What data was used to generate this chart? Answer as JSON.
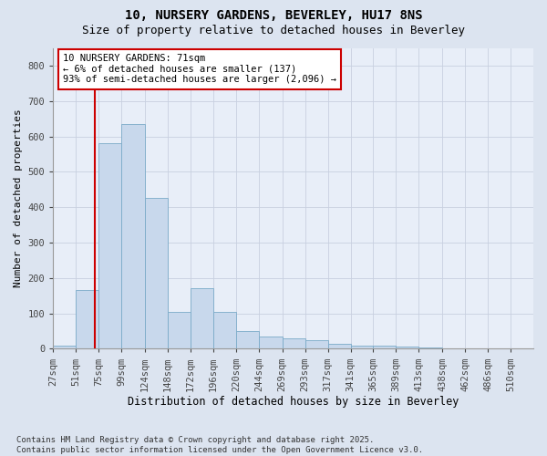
{
  "title": "10, NURSERY GARDENS, BEVERLEY, HU17 8NS",
  "subtitle": "Size of property relative to detached houses in Beverley",
  "xlabel": "Distribution of detached houses by size in Beverley",
  "ylabel": "Number of detached properties",
  "footnote": "Contains HM Land Registry data © Crown copyright and database right 2025.\nContains public sector information licensed under the Open Government Licence v3.0.",
  "bin_labels": [
    "27sqm",
    "51sqm",
    "75sqm",
    "99sqm",
    "124sqm",
    "148sqm",
    "172sqm",
    "196sqm",
    "220sqm",
    "244sqm",
    "269sqm",
    "293sqm",
    "317sqm",
    "341sqm",
    "365sqm",
    "389sqm",
    "413sqm",
    "438sqm",
    "462sqm",
    "486sqm",
    "510sqm"
  ],
  "bin_edges": [
    27,
    51,
    75,
    99,
    124,
    148,
    172,
    196,
    220,
    244,
    269,
    293,
    317,
    341,
    365,
    389,
    413,
    438,
    462,
    486,
    510
  ],
  "bar_heights": [
    10,
    165,
    580,
    635,
    425,
    105,
    170,
    105,
    50,
    35,
    30,
    25,
    15,
    10,
    10,
    5,
    3,
    2,
    1,
    1,
    1
  ],
  "bar_color": "#c8d8ec",
  "bar_edge_color": "#7aaac8",
  "grid_color": "#c8d0e0",
  "vline_x": 71,
  "vline_color": "#cc0000",
  "annotation_text": "10 NURSERY GARDENS: 71sqm\n← 6% of detached houses are smaller (137)\n93% of semi-detached houses are larger (2,096) →",
  "annotation_box_edgecolor": "#cc0000",
  "ylim": [
    0,
    850
  ],
  "yticks": [
    0,
    100,
    200,
    300,
    400,
    500,
    600,
    700,
    800
  ],
  "background_color": "#dce4f0",
  "plot_background_color": "#e8eef8",
  "title_fontsize": 10,
  "subtitle_fontsize": 9,
  "footnote_fontsize": 6.5,
  "ylabel_fontsize": 8,
  "xlabel_fontsize": 8.5,
  "tick_fontsize": 7.5,
  "annotation_fontsize": 7.5
}
